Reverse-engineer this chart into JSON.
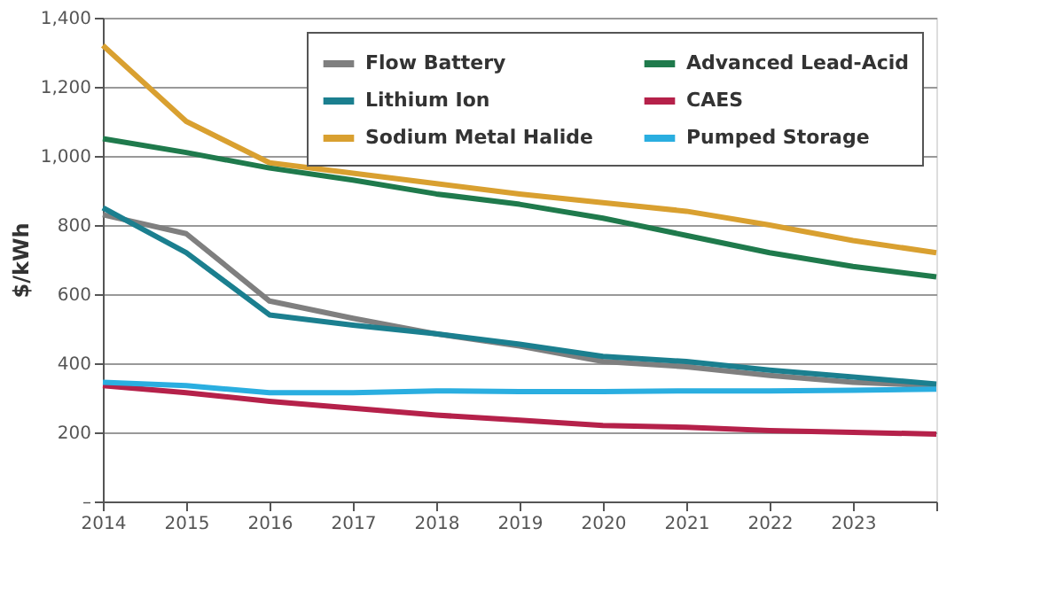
{
  "chart_data": {
    "type": "line",
    "ylabel": "$/kWh",
    "x": [
      2014,
      2015,
      2016,
      2017,
      2018,
      2019,
      2020,
      2021,
      2022,
      2023,
      2024
    ],
    "xlim": [
      2014,
      2024
    ],
    "xticks": [
      2014,
      2015,
      2016,
      2017,
      2018,
      2019,
      2020,
      2021,
      2022,
      2023,
      {
        "value": 2024,
        "label": null
      }
    ],
    "ylim": [
      0,
      1400
    ],
    "yticks": [
      {
        "value": 0,
        "label": "–"
      },
      200,
      400,
      600,
      800,
      {
        "value": 1000,
        "label": "1,000"
      },
      {
        "value": 1200,
        "label": "1,200"
      },
      {
        "value": 1400,
        "label": "1,400"
      }
    ],
    "grid": "y",
    "legend": "top right",
    "marker": "none",
    "line_style": "solid",
    "series": [
      {
        "name": "Flow Battery",
        "color": "#7f7f7f",
        "values": [
          830,
          775,
          580,
          530,
          485,
          450,
          405,
          390,
          365,
          345,
          335
        ]
      },
      {
        "name": "Lithium Ion",
        "color": "#1b7f8f",
        "values": [
          850,
          720,
          540,
          510,
          485,
          455,
          420,
          405,
          380,
          360,
          340
        ]
      },
      {
        "name": "Sodium Metal Halide",
        "color": "#d9a030",
        "values": [
          1320,
          1100,
          980,
          950,
          920,
          890,
          865,
          840,
          800,
          755,
          720
        ]
      },
      {
        "name": "Advanced Lead-Acid",
        "color": "#1f7a4c",
        "values": [
          1050,
          1010,
          965,
          930,
          890,
          860,
          820,
          770,
          720,
          680,
          650
        ]
      },
      {
        "name": "CAES",
        "color": "#b5214a",
        "values": [
          335,
          315,
          290,
          270,
          250,
          235,
          220,
          215,
          205,
          200,
          195
        ]
      },
      {
        "name": "Pumped Storage",
        "color": "#2aaee0",
        "values": [
          345,
          335,
          315,
          315,
          320,
          318,
          318,
          320,
          320,
          322,
          325
        ]
      }
    ]
  }
}
